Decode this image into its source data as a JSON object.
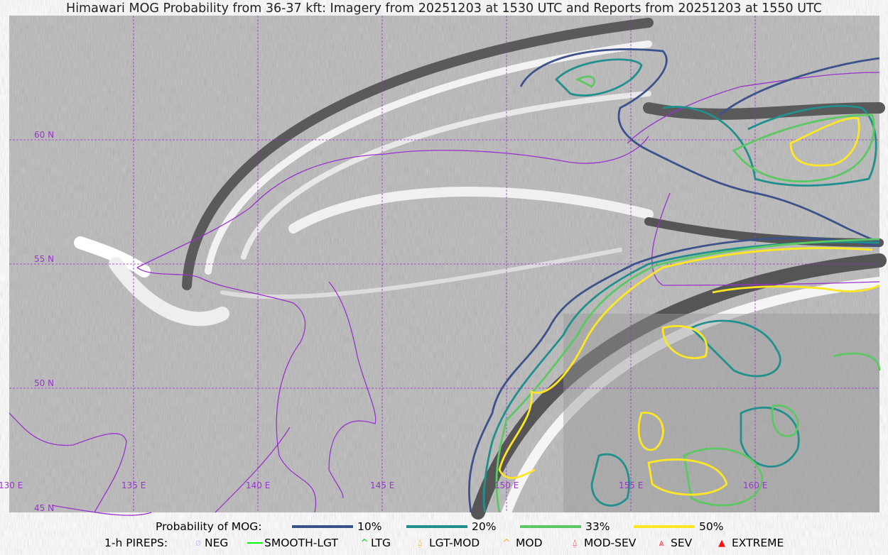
{
  "title": "Himawari MOG Probability from 36-37 kft: Imagery from 20251203 at 1530 UTC and Reports from 20251203 at 1550 UTC",
  "map": {
    "lat_labels": [
      "60 N",
      "55 N",
      "50 N",
      "45 N"
    ],
    "lon_labels": [
      "130 E",
      "135 E",
      "140 E",
      "145 E",
      "150 E",
      "155 E",
      "160 E"
    ],
    "colors": {
      "coastline": "#9933cc",
      "grid": "#9933cc",
      "background": "#b4b4b4"
    }
  },
  "legend": {
    "probability_label": "Probability of MOG:",
    "probability_items": [
      {
        "label": "10%",
        "color": "#3b528b"
      },
      {
        "label": "20%",
        "color": "#21908d"
      },
      {
        "label": "33%",
        "color": "#5dc863"
      },
      {
        "label": "50%",
        "color": "#fde725"
      }
    ],
    "pireps_label": "1-h PIREPS:",
    "pireps_items": [
      {
        "label": "NEG",
        "icon": "neg-circle-slash-icon",
        "color": "#c8c8ff"
      },
      {
        "label": "SMOOTH-LGT",
        "icon": "smooth-line-icon",
        "color": "#00ff00"
      },
      {
        "label": "LTG",
        "icon": "caret-icon",
        "color": "#00dd00"
      },
      {
        "label": "LGT-MOD",
        "icon": "caret-bar-icon",
        "color": "#ffb020"
      },
      {
        "label": "MOD",
        "icon": "caret-icon",
        "color": "#ffb020"
      },
      {
        "label": "MOD-SEV",
        "icon": "double-caret-bar-icon",
        "color": "#ff3030"
      },
      {
        "label": "SEV",
        "icon": "double-caret-icon",
        "color": "#ff3030"
      },
      {
        "label": "EXTREME",
        "icon": "filled-triangle-icon",
        "color": "#ff1010"
      }
    ]
  }
}
